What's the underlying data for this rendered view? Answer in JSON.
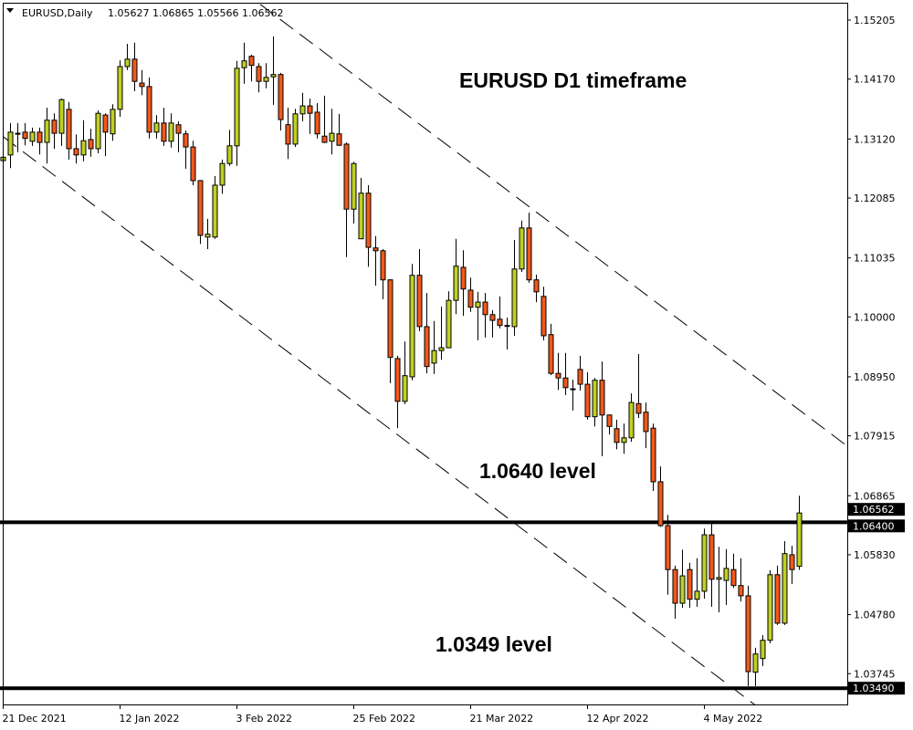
{
  "header": {
    "menu_icon": "triangle-down-icon",
    "symbol_label": "EURUSD,Daily",
    "ohlc_text": "1.05627 1.06865 1.05566 1.06562"
  },
  "chart_data": {
    "type": "candlestick",
    "title": "EURUSD D1 timeframe",
    "symbol": "EURUSD",
    "timeframe": "Daily",
    "ylim": [
      1.0327,
      1.1556
    ],
    "grid": false,
    "colors": {
      "bull": "#bfd122",
      "bear": "#f2591a",
      "outline": "#000000",
      "background": "#ffffff"
    },
    "y_ticks": [
      "1.15205",
      "1.14170",
      "1.13120",
      "1.12085",
      "1.11035",
      "1.10000",
      "1.08950",
      "1.07915",
      "1.06865",
      "1.05830",
      "1.04780",
      "1.03745"
    ],
    "x_ticks": [
      {
        "label": "21 Dec 2021",
        "bar": 0
      },
      {
        "label": "12 Jan 2022",
        "bar": 16
      },
      {
        "label": "3 Feb 2022",
        "bar": 32
      },
      {
        "label": "25 Feb 2022",
        "bar": 48
      },
      {
        "label": "21 Mar 2022",
        "bar": 64
      },
      {
        "label": "12 Apr 2022",
        "bar": 80
      },
      {
        "label": "4 May 2022",
        "bar": 96
      }
    ],
    "price_tags": [
      {
        "label": "1.06562",
        "price": 1.06562
      },
      {
        "label": "1.06400",
        "price": 1.064
      },
      {
        "label": "1.03490",
        "price": 1.0349
      }
    ],
    "horizontal_levels": [
      {
        "price": 1.064,
        "label": "1.0640 level"
      },
      {
        "price": 1.0349,
        "label": "1.0349 level"
      }
    ],
    "trend_lines": [
      {
        "style": "dashed",
        "points": [
          [
            35.2,
            1.1548
          ],
          [
            115.2,
            1.0777
          ]
        ]
      },
      {
        "style": "dashed",
        "points": [
          [
            0,
            1.1316
          ],
          [
            103,
            1.0319
          ]
        ]
      }
    ],
    "candles_ohlc": [
      [
        1.1274,
        1.1301,
        1.1258,
        1.128
      ],
      [
        1.1284,
        1.134,
        1.1261,
        1.1324
      ],
      [
        1.1322,
        1.134,
        1.1289,
        1.1322
      ],
      [
        1.1324,
        1.134,
        1.1301,
        1.1313
      ],
      [
        1.1308,
        1.1332,
        1.13,
        1.1324
      ],
      [
        1.1324,
        1.1332,
        1.1285,
        1.1306
      ],
      [
        1.1306,
        1.1367,
        1.1269,
        1.1345
      ],
      [
        1.1345,
        1.1357,
        1.1295,
        1.1322
      ],
      [
        1.1322,
        1.1383,
        1.13,
        1.1381
      ],
      [
        1.1364,
        1.1377,
        1.1276,
        1.1295
      ],
      [
        1.1295,
        1.132,
        1.1269,
        1.1284
      ],
      [
        1.1284,
        1.1345,
        1.1273,
        1.1309
      ],
      [
        1.1311,
        1.133,
        1.1281,
        1.1295
      ],
      [
        1.1295,
        1.1362,
        1.1287,
        1.1357
      ],
      [
        1.1354,
        1.1357,
        1.1282,
        1.1324
      ],
      [
        1.1321,
        1.1373,
        1.1309,
        1.1364
      ],
      [
        1.1364,
        1.145,
        1.1351,
        1.1439
      ],
      [
        1.1439,
        1.1479,
        1.1433,
        1.1452
      ],
      [
        1.1452,
        1.1481,
        1.1396,
        1.1413
      ],
      [
        1.141,
        1.1433,
        1.1389,
        1.1404
      ],
      [
        1.1404,
        1.142,
        1.1313,
        1.1324
      ],
      [
        1.1324,
        1.1354,
        1.1313,
        1.134
      ],
      [
        1.134,
        1.1367,
        1.13,
        1.1308
      ],
      [
        1.1308,
        1.1357,
        1.1297,
        1.134
      ],
      [
        1.1337,
        1.1343,
        1.1289,
        1.1322
      ],
      [
        1.1321,
        1.1327,
        1.126,
        1.1298
      ],
      [
        1.1298,
        1.1309,
        1.1231,
        1.1239
      ],
      [
        1.1239,
        1.124,
        1.1128,
        1.1143
      ],
      [
        1.114,
        1.1172,
        1.1119,
        1.1145
      ],
      [
        1.114,
        1.1247,
        1.1137,
        1.1231
      ],
      [
        1.1231,
        1.1276,
        1.1216,
        1.1269
      ],
      [
        1.1269,
        1.1328,
        1.1265,
        1.13
      ],
      [
        1.13,
        1.1449,
        1.1265,
        1.1436
      ],
      [
        1.1437,
        1.1481,
        1.1409,
        1.1449
      ],
      [
        1.1457,
        1.146,
        1.1413,
        1.1441
      ],
      [
        1.1439,
        1.1445,
        1.1394,
        1.1413
      ],
      [
        1.1413,
        1.1445,
        1.1401,
        1.142
      ],
      [
        1.1421,
        1.1492,
        1.1372,
        1.1425
      ],
      [
        1.1425,
        1.1428,
        1.1327,
        1.1346
      ],
      [
        1.1337,
        1.1367,
        1.1277,
        1.1303
      ],
      [
        1.1303,
        1.1365,
        1.1298,
        1.1356
      ],
      [
        1.1356,
        1.1393,
        1.1343,
        1.137
      ],
      [
        1.137,
        1.1383,
        1.1321,
        1.1357
      ],
      [
        1.1359,
        1.1375,
        1.1313,
        1.1321
      ],
      [
        1.1317,
        1.1388,
        1.1305,
        1.1306
      ],
      [
        1.1308,
        1.1365,
        1.1285,
        1.1322
      ],
      [
        1.1321,
        1.1356,
        1.13,
        1.1301
      ],
      [
        1.1303,
        1.1306,
        1.1105,
        1.1189
      ],
      [
        1.1189,
        1.1272,
        1.1164,
        1.1269
      ],
      [
        1.1137,
        1.1244,
        1.1137,
        1.1217
      ],
      [
        1.1217,
        1.1231,
        1.1088,
        1.1122
      ],
      [
        1.1121,
        1.1142,
        1.1055,
        1.1116
      ],
      [
        1.1116,
        1.1119,
        1.1031,
        1.1065
      ],
      [
        1.1065,
        1.1066,
        1.0884,
        1.0929
      ],
      [
        1.0927,
        1.0932,
        1.0805,
        1.0852
      ],
      [
        1.0852,
        1.0957,
        1.0847,
        1.0897
      ],
      [
        1.0895,
        1.1093,
        1.0889,
        1.1073
      ],
      [
        1.1073,
        1.1119,
        1.0975,
        1.0983
      ],
      [
        1.0983,
        1.1042,
        1.0901,
        1.0913
      ],
      [
        1.0919,
        1.0993,
        1.09,
        1.0941
      ],
      [
        1.0941,
        1.1018,
        1.0925,
        1.0946
      ],
      [
        1.0946,
        1.1045,
        1.0946,
        1.1029
      ],
      [
        1.1029,
        1.1137,
        1.1005,
        1.1089
      ],
      [
        1.1087,
        1.1117,
        1.1002,
        1.1049
      ],
      [
        1.1047,
        1.1069,
        1.1009,
        1.1017
      ],
      [
        1.1017,
        1.1044,
        1.0959,
        1.1026
      ],
      [
        1.1026,
        1.1042,
        1.0964,
        1.1004
      ],
      [
        1.1004,
        1.1012,
        1.0964,
        1.0994
      ],
      [
        1.0996,
        1.1036,
        1.098,
        1.0985
      ],
      [
        1.0985,
        1.0999,
        1.0943,
        1.0985
      ],
      [
        1.0983,
        1.1135,
        1.0967,
        1.1084
      ],
      [
        1.1084,
        1.1169,
        1.1079,
        1.1156
      ],
      [
        1.1156,
        1.1183,
        1.106,
        1.1065
      ],
      [
        1.1065,
        1.1074,
        1.1026,
        1.1044
      ],
      [
        1.1036,
        1.1053,
        1.0959,
        1.0967
      ],
      [
        1.0969,
        1.0988,
        1.0898,
        1.0901
      ],
      [
        1.0901,
        1.0937,
        1.0872,
        1.0893
      ],
      [
        1.0893,
        1.0937,
        1.0863,
        1.0876
      ],
      [
        1.0874,
        1.089,
        1.0836,
        1.0874
      ],
      [
        1.0908,
        1.0932,
        1.0871,
        1.0882
      ],
      [
        1.0882,
        1.0903,
        1.082,
        1.0825
      ],
      [
        1.0825,
        1.0893,
        1.0808,
        1.0889
      ],
      [
        1.0889,
        1.0922,
        1.0756,
        1.0828
      ],
      [
        1.0828,
        1.0829,
        1.0794,
        1.0808
      ],
      [
        1.0804,
        1.082,
        1.0768,
        1.078
      ],
      [
        1.078,
        1.0813,
        1.076,
        1.0788
      ],
      [
        1.0788,
        1.0866,
        1.0781,
        1.085
      ],
      [
        1.0848,
        1.0935,
        1.0823,
        1.0831
      ],
      [
        1.0833,
        1.085,
        1.077,
        1.0799
      ],
      [
        1.0805,
        1.0813,
        1.0695,
        1.0711
      ],
      [
        1.0711,
        1.0738,
        1.0632,
        1.0634
      ],
      [
        1.0634,
        1.0653,
        1.0513,
        1.0557
      ],
      [
        1.0557,
        1.0564,
        1.0471,
        1.0498
      ],
      [
        1.0498,
        1.0592,
        1.049,
        1.0546
      ],
      [
        1.0557,
        1.0569,
        1.049,
        1.0505
      ],
      [
        1.0505,
        1.0577,
        1.0492,
        1.0519
      ],
      [
        1.0519,
        1.0629,
        1.0506,
        1.0618
      ],
      [
        1.0618,
        1.0639,
        1.0492,
        1.054
      ],
      [
        1.054,
        1.0597,
        1.0482,
        1.0543
      ],
      [
        1.0538,
        1.0593,
        1.0495,
        1.0559
      ],
      [
        1.0557,
        1.0585,
        1.0525,
        1.0529
      ],
      [
        1.0529,
        1.0577,
        1.0501,
        1.0511
      ],
      [
        1.0511,
        1.0529,
        1.0353,
        1.0378
      ],
      [
        1.0377,
        1.042,
        1.0353,
        1.0409
      ],
      [
        1.0401,
        1.0442,
        1.0388,
        1.0433
      ],
      [
        1.0433,
        1.0556,
        1.0428,
        1.0548
      ],
      [
        1.0548,
        1.0564,
        1.046,
        1.0463
      ],
      [
        1.0463,
        1.0607,
        1.046,
        1.0585
      ],
      [
        1.0583,
        1.0599,
        1.0532,
        1.0557
      ],
      [
        1.05627,
        1.06865,
        1.05566,
        1.06562
      ]
    ]
  }
}
